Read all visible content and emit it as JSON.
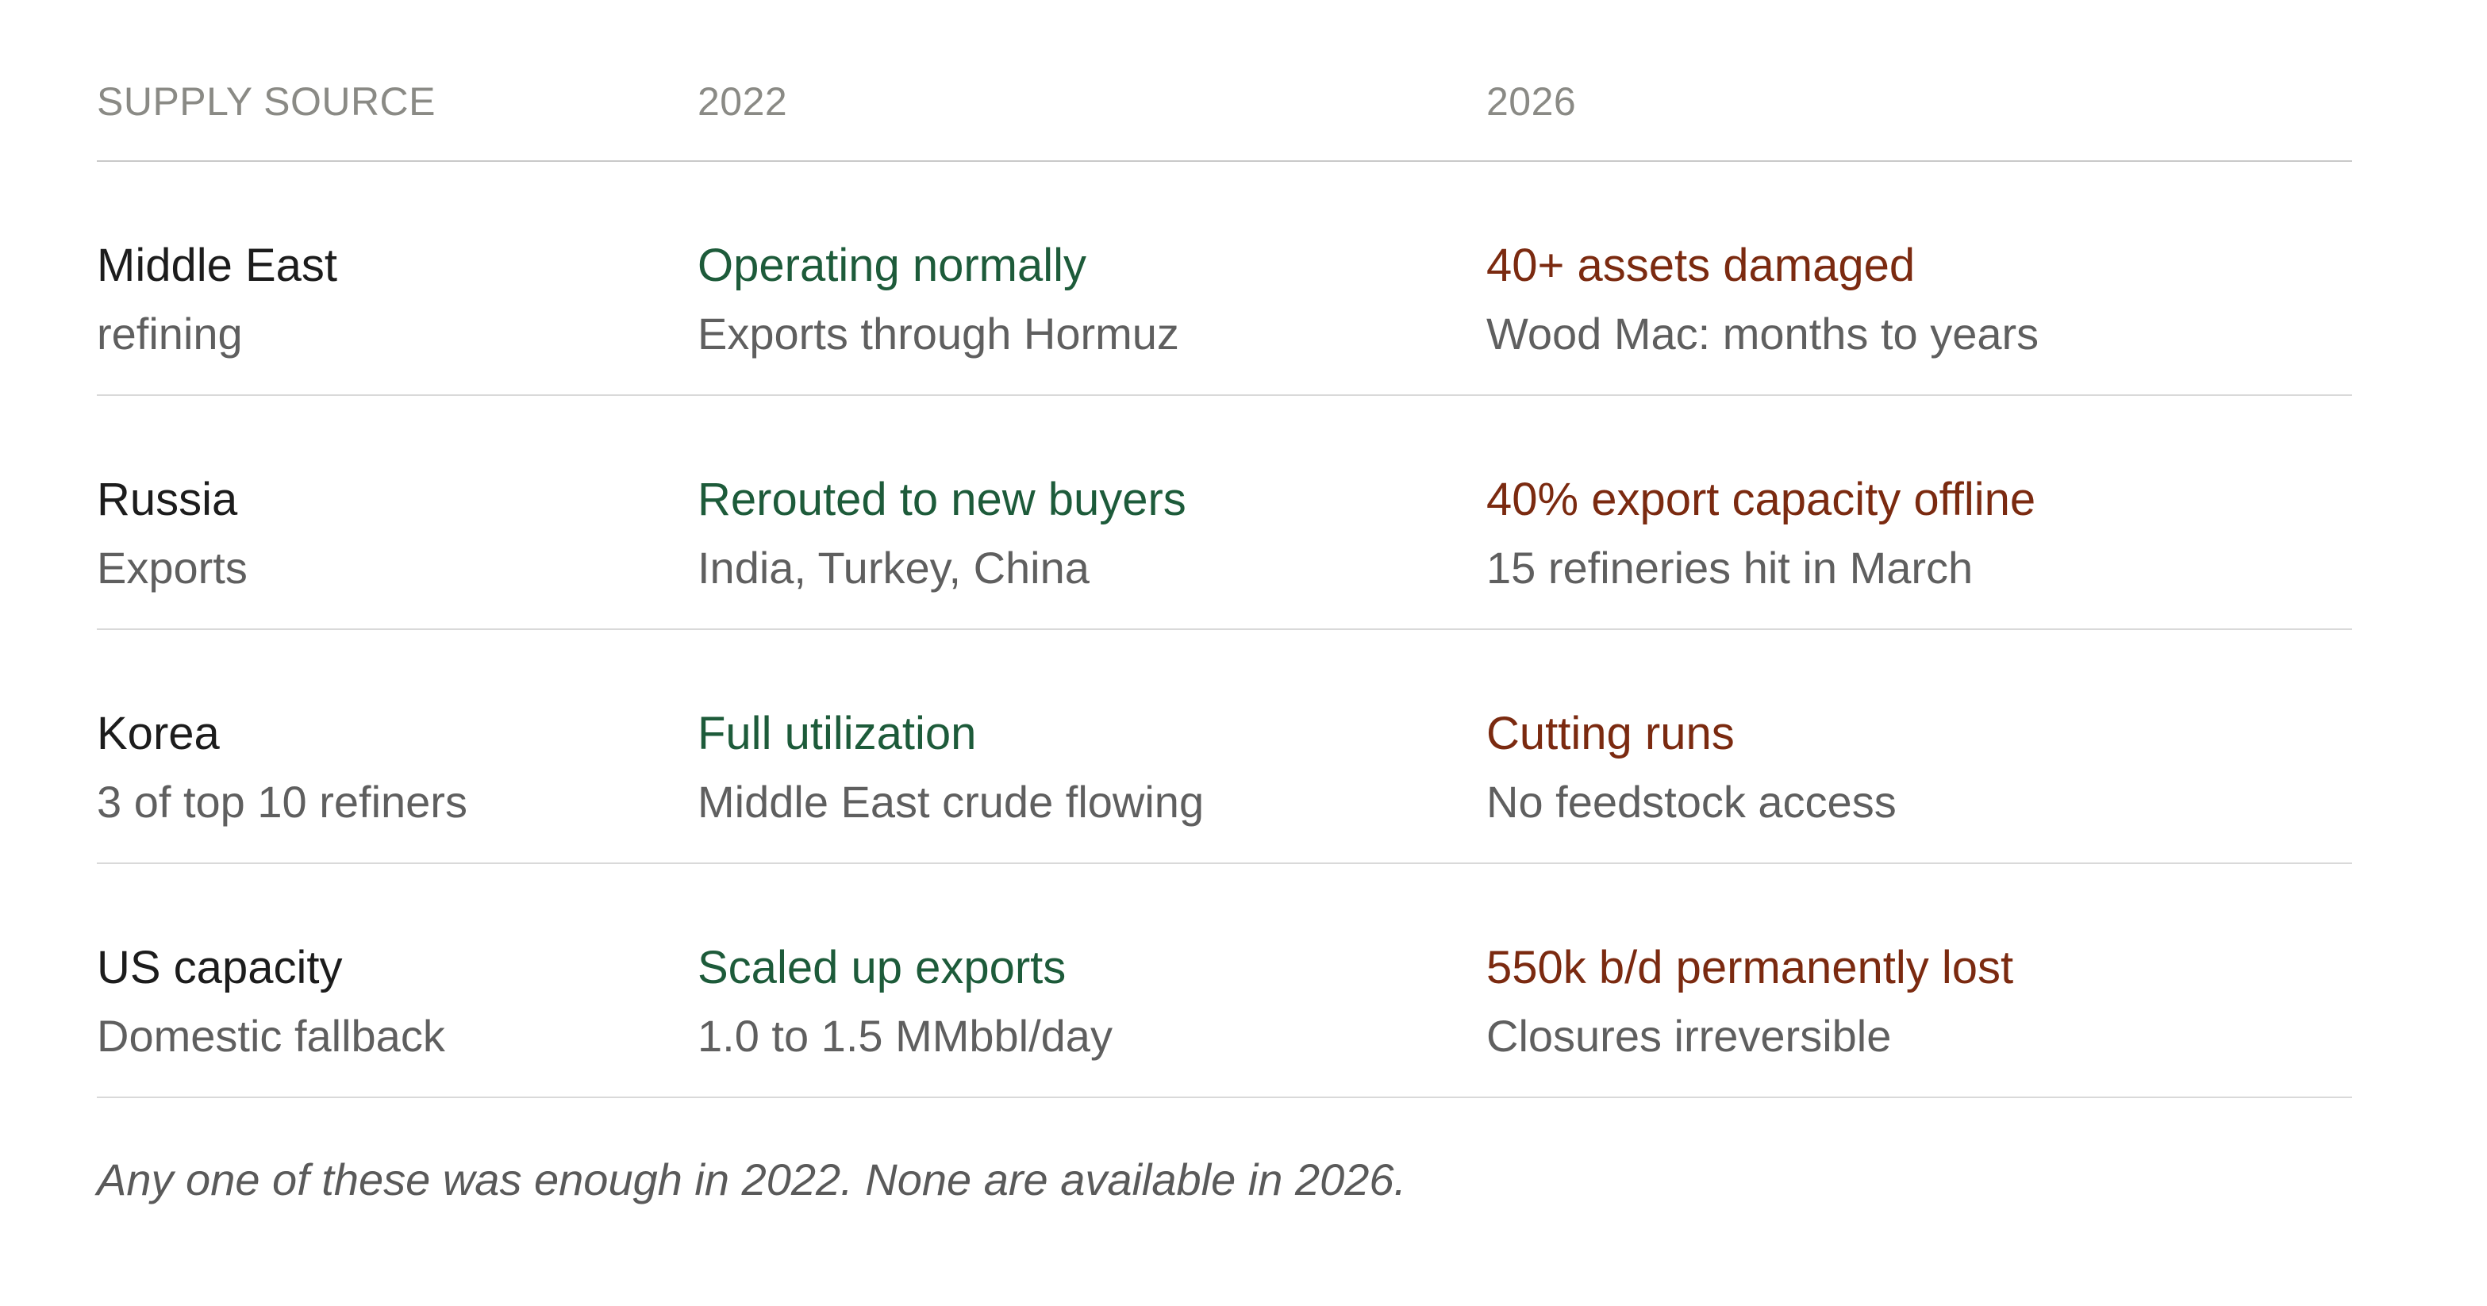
{
  "header": {
    "col1": "SUPPLY SOURCE",
    "col2": "2022",
    "col3": "2026"
  },
  "rows": [
    {
      "source": "Middle East",
      "source_sub": "refining",
      "y2022": "Operating normally",
      "y2022_sub": "Exports through Hormuz",
      "y2026": "40+ assets damaged",
      "y2026_sub": "Wood Mac: months to years"
    },
    {
      "source": "Russia",
      "source_sub": "Exports",
      "y2022": "Rerouted to new buyers",
      "y2022_sub": "India, Turkey, China",
      "y2026": "40% export capacity offline",
      "y2026_sub": "15 refineries hit in March"
    },
    {
      "source": "Korea",
      "source_sub": "3 of top 10 refiners",
      "y2022": "Full utilization",
      "y2022_sub": "Middle East crude flowing",
      "y2026": "Cutting runs",
      "y2026_sub": "No feedstock access"
    },
    {
      "source": "US capacity",
      "source_sub": "Domestic fallback",
      "y2022": "Scaled up exports",
      "y2022_sub": "1.0 to 1.5 MMbbl/day",
      "y2026": "550k b/d permanently lost",
      "y2026_sub": "Closures irreversible"
    }
  ],
  "footnote": "Any one of these was enough in 2022. None are available in 2026.",
  "colors": {
    "positive": "#1d5b3a",
    "negative": "#7b2a10",
    "muted": "#5f5f5f",
    "header": "#8a8a85"
  }
}
